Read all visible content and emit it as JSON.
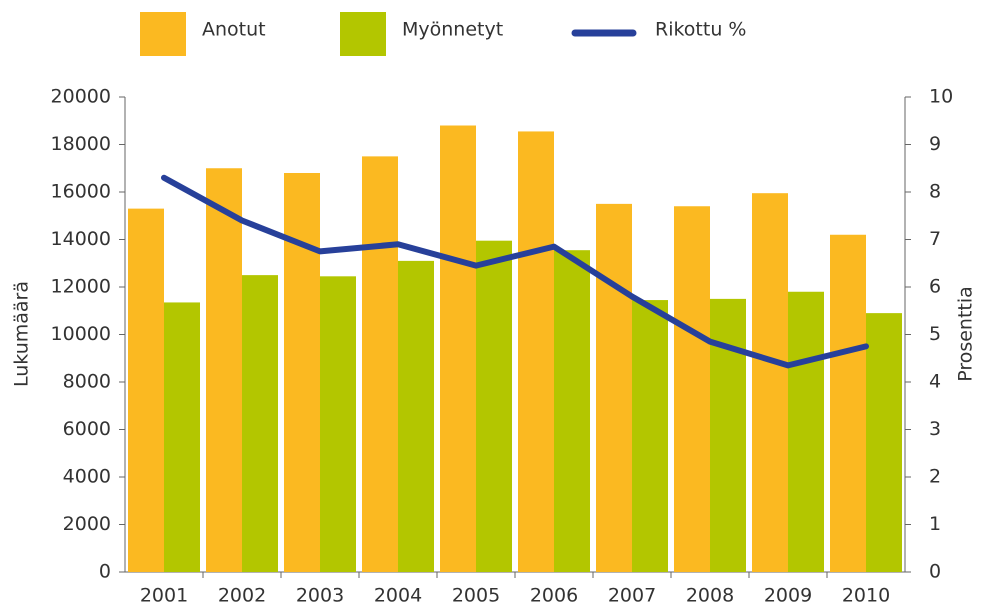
{
  "chart_data": {
    "type": "bar_line",
    "categories": [
      "2001",
      "2002",
      "2003",
      "2004",
      "2005",
      "2006",
      "2007",
      "2008",
      "2009",
      "2010"
    ],
    "series": [
      {
        "name": "Anotut",
        "color": "#fbb921",
        "values": [
          15300,
          17000,
          16800,
          17500,
          18800,
          18550,
          15500,
          15400,
          15950,
          14200
        ]
      },
      {
        "name": "Myönnetyt",
        "color": "#b3c600",
        "values": [
          11350,
          12500,
          12450,
          13100,
          13950,
          13550,
          11450,
          11500,
          11800,
          10900
        ]
      },
      {
        "name": "Rikottu %",
        "color": "#27409a",
        "axis": "y2",
        "type": "line",
        "values": [
          8.3,
          7.4,
          6.75,
          6.9,
          6.45,
          6.85,
          5.8,
          4.85,
          4.35,
          4.75
        ]
      }
    ],
    "y_label": "Lukumäärä",
    "y2_label": "Prosenttia",
    "ylim": [
      0,
      20000
    ],
    "yticks": [
      0,
      2000,
      4000,
      6000,
      8000,
      10000,
      12000,
      14000,
      16000,
      18000,
      20000
    ],
    "y2lim": [
      0,
      10
    ],
    "y2ticks": [
      0,
      1,
      2,
      3,
      4,
      5,
      6,
      7,
      8,
      9,
      10
    ],
    "grid": false,
    "legend": "top"
  }
}
